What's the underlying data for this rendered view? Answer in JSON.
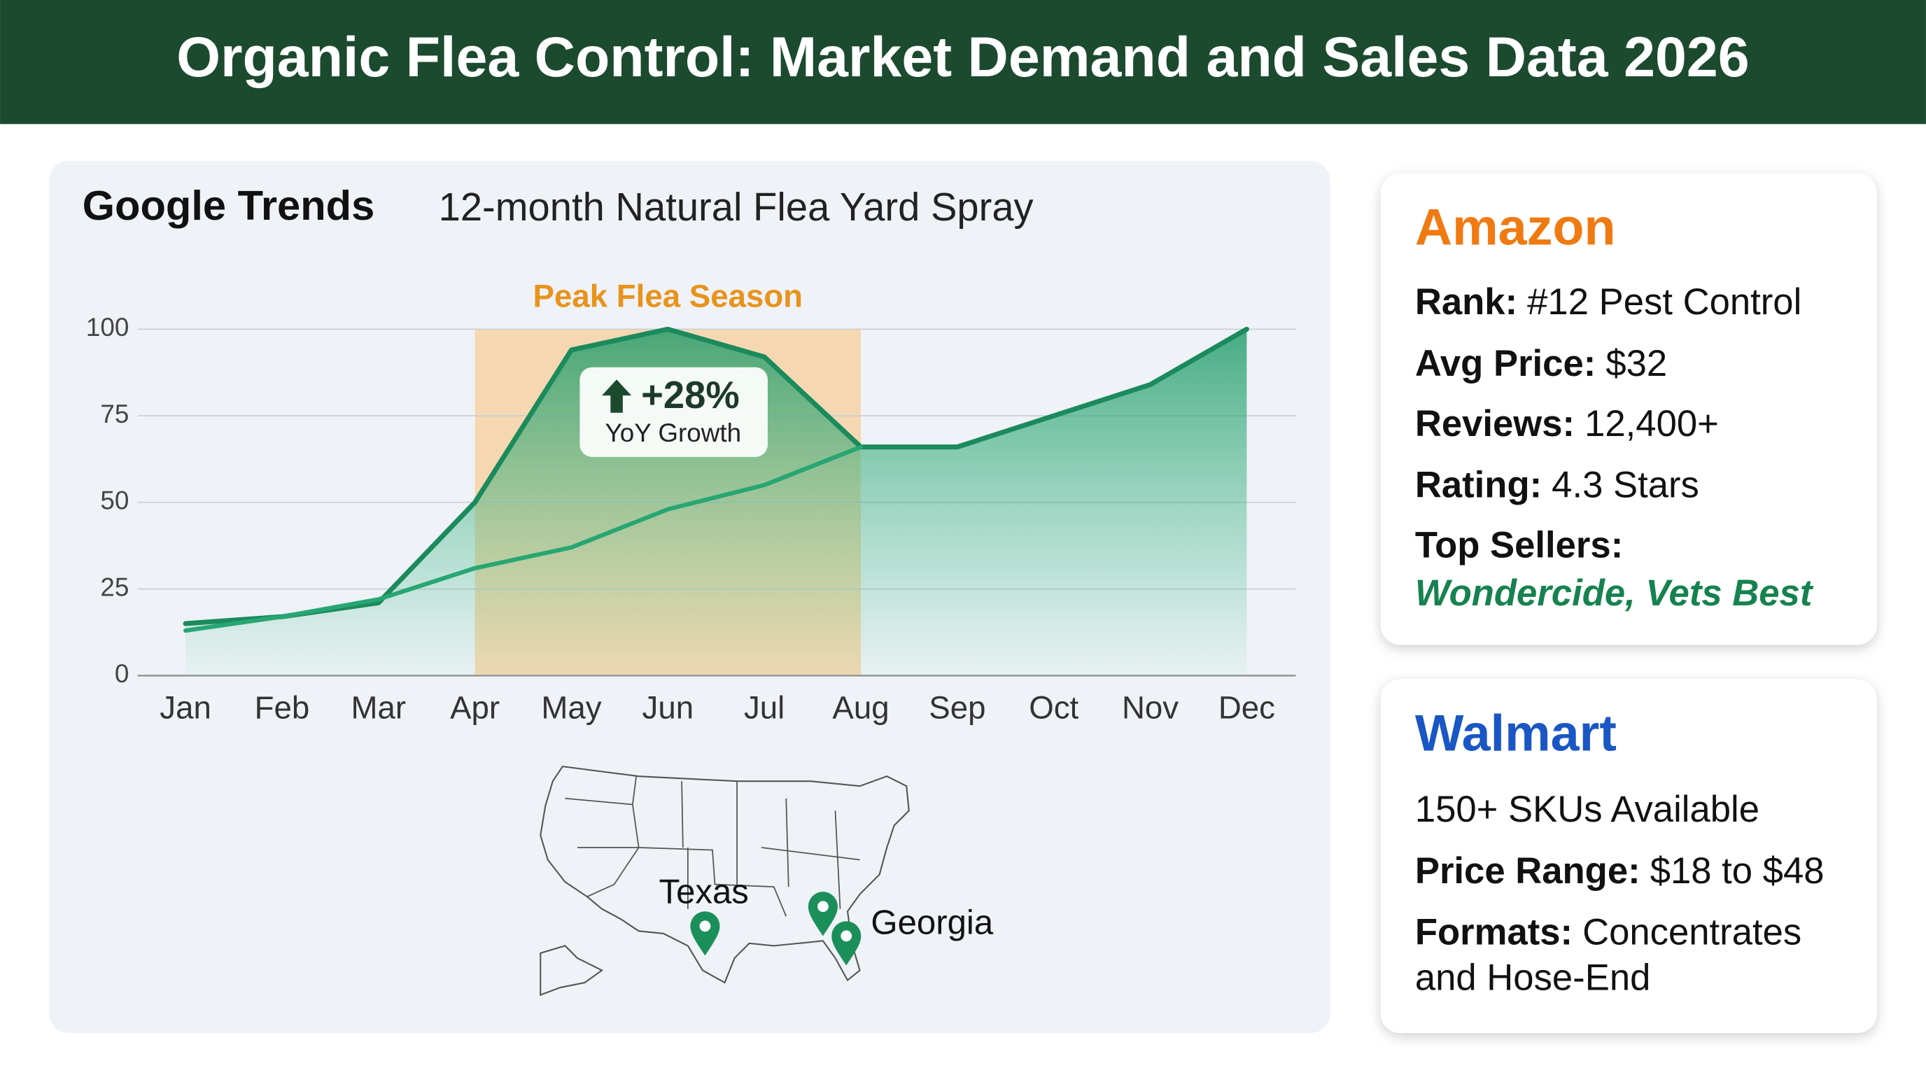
{
  "header": {
    "title": "Organic Flea Control: Market Demand and Sales Data 2026"
  },
  "chart_data": {
    "type": "line",
    "title": "Google Trends",
    "subtitle": "12-month Natural Flea Yard Spray",
    "categories": [
      "Jan",
      "Feb",
      "Mar",
      "Apr",
      "May",
      "Jun",
      "Jul",
      "Aug",
      "Sep",
      "Oct",
      "Nov",
      "Dec"
    ],
    "series": [
      {
        "color": "#1b8a5c",
        "values": [
          15,
          17,
          21,
          50,
          94,
          100,
          92,
          66,
          66,
          75,
          84,
          100
        ]
      },
      {
        "color": "#27a673",
        "values": [
          13,
          17,
          22,
          31,
          37,
          48,
          55,
          66,
          null,
          null,
          null,
          null
        ]
      }
    ],
    "ylim": [
      0,
      100
    ],
    "yticks": [
      0,
      25,
      50,
      75,
      100
    ],
    "grid": true,
    "highlight": {
      "label": "Peak Flea Season",
      "from": "Apr",
      "to": "Aug",
      "color": "#f6d4a4"
    },
    "annotation": {
      "text": "+28%",
      "subtext": "YoY Growth"
    }
  },
  "map": {
    "labels": [
      "Texas",
      "Georgia"
    ]
  },
  "amazon": {
    "title": "Amazon",
    "rows": [
      {
        "label": "Rank:",
        "value": "#12 Pest Control"
      },
      {
        "label": "Avg Price:",
        "value": "$32"
      },
      {
        "label": "Reviews:",
        "value": "12,400+"
      },
      {
        "label": "Rating:",
        "value": "4.3 Stars"
      },
      {
        "label": "Top Sellers:",
        "value": "Wondercide, Vets Best"
      }
    ]
  },
  "walmart": {
    "title": "Walmart",
    "skus": "150+ SKUs Available",
    "rows": [
      {
        "label": "Price Range:",
        "value": "$18 to $48"
      },
      {
        "label": "Formats:",
        "value": "Concentrates",
        "continued": "and Hose-End"
      }
    ]
  }
}
